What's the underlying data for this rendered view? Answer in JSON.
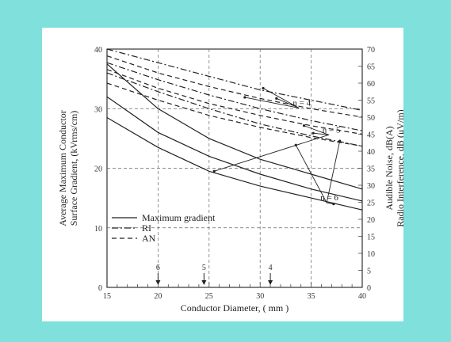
{
  "colors": {
    "frame_bg": "#7fe0dc",
    "card_bg": "#ffffff",
    "ink": "#333333"
  },
  "chart_data": {
    "type": "line",
    "title": "",
    "xlabel": "Conductor Diameter, ( mm )",
    "ylabel_left": [
      "Average Maximum Conductor",
      "Surface Gradient, (kVrms/cm)"
    ],
    "ylabel_right": [
      "Audible Noise, dB(A)",
      "Radio Interference, dB (μV/m)"
    ],
    "x_ticks": [
      "15",
      "20",
      "25",
      "30",
      "35",
      "40"
    ],
    "y_left_ticks": [
      "0",
      "10",
      "20",
      "30",
      "40"
    ],
    "y_right_ticks": [
      "0",
      "5",
      "10",
      "15",
      "20",
      "25",
      "30",
      "35",
      "40",
      "45",
      "50",
      "55",
      "60",
      "65",
      "70"
    ],
    "xlim": [
      15,
      40
    ],
    "ylim_left": [
      0,
      40
    ],
    "ylim_right": [
      0,
      70
    ],
    "legend": [
      {
        "label": "Maximum gradient",
        "style": "solid"
      },
      {
        "label": "RI",
        "style": "dashdot"
      },
      {
        "label": "AN",
        "style": "dashed"
      }
    ],
    "annotations": [
      "n = 4",
      "n = 5",
      "n = 6"
    ],
    "diameter_markers": [
      {
        "n_label": "6",
        "x": 20
      },
      {
        "n_label": "5",
        "x": 24.5
      },
      {
        "n_label": "4",
        "x": 31
      }
    ],
    "series": [
      {
        "name": "Maximum gradient",
        "group": "n = 4",
        "style": "solid",
        "axis": "left",
        "x": [
          15,
          20,
          25,
          30,
          35,
          40
        ],
        "y": [
          37.5,
          30,
          25,
          21.5,
          19,
          16.5
        ]
      },
      {
        "name": "Maximum gradient",
        "group": "n = 5",
        "style": "solid",
        "axis": "left",
        "x": [
          15,
          20,
          25,
          30,
          35,
          40
        ],
        "y": [
          32,
          26,
          22,
          19,
          16.5,
          14.5
        ]
      },
      {
        "name": "Maximum gradient",
        "group": "n = 6",
        "style": "solid",
        "axis": "left",
        "x": [
          15,
          20,
          25,
          30,
          35,
          40
        ],
        "y": [
          28.5,
          23.5,
          19.5,
          17,
          15,
          13
        ]
      },
      {
        "name": "RI",
        "group": "n = 4",
        "style": "dashdot",
        "axis": "right",
        "x": [
          15,
          20,
          25,
          30,
          35,
          40
        ],
        "y": [
          70,
          66,
          62,
          58,
          55,
          52
        ]
      },
      {
        "name": "RI",
        "group": "n = 5",
        "style": "dashdot",
        "axis": "right",
        "x": [
          15,
          20,
          25,
          30,
          35,
          40
        ],
        "y": [
          66,
          61,
          56.5,
          52.5,
          49,
          46
        ]
      },
      {
        "name": "RI",
        "group": "n = 6",
        "style": "dashdot",
        "axis": "right",
        "x": [
          15,
          20,
          25,
          30,
          35,
          40
        ],
        "y": [
          63,
          57.5,
          52.5,
          48,
          44.5,
          41.5
        ]
      },
      {
        "name": "AN",
        "group": "n = 4",
        "style": "dashed",
        "axis": "right",
        "x": [
          15,
          20,
          25,
          30,
          35,
          40
        ],
        "y": [
          68,
          63,
          59,
          55.5,
          52.5,
          50
        ]
      },
      {
        "name": "AN",
        "group": "n = 5",
        "style": "dashed",
        "axis": "right",
        "x": [
          15,
          20,
          25,
          30,
          35,
          40
        ],
        "y": [
          64,
          58.5,
          54,
          50.5,
          47.5,
          45
        ]
      },
      {
        "name": "AN",
        "group": "n = 6",
        "style": "dashed",
        "axis": "right",
        "x": [
          15,
          20,
          25,
          30,
          35,
          40
        ],
        "y": [
          60,
          55,
          50.5,
          47,
          44,
          41.5
        ]
      }
    ]
  }
}
